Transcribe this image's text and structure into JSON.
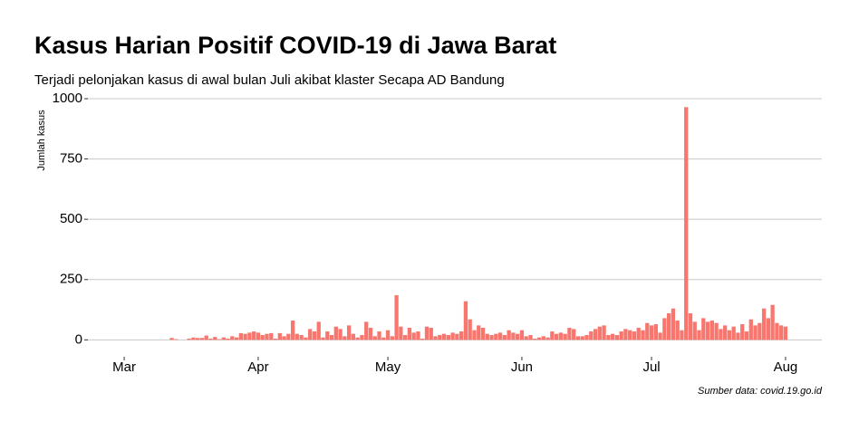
{
  "chart_data": {
    "type": "bar",
    "title": "Kasus Harian Positif COVID-19 di Jawa Barat",
    "subtitle": "Terjadi pelonjakan kasus di awal bulan Juli akibat klaster Secapa AD Bandung",
    "y_label": "Jumlah kasus",
    "caption": "Sumber data: covid.19.go.id",
    "color": "#F8766D",
    "grid": true,
    "x": [
      11,
      12,
      13,
      14,
      15,
      16,
      17,
      18,
      19,
      20,
      21,
      22,
      23,
      24,
      25,
      26,
      27,
      28,
      29,
      30,
      31,
      32,
      33,
      34,
      35,
      36,
      37,
      38,
      39,
      40,
      41,
      42,
      43,
      44,
      45,
      46,
      47,
      48,
      49,
      50,
      51,
      52,
      53,
      54,
      55,
      56,
      57,
      58,
      59,
      60,
      61,
      62,
      63,
      64,
      65,
      66,
      67,
      68,
      69,
      70,
      71,
      72,
      73,
      74,
      75,
      76,
      77,
      78,
      79,
      80,
      81,
      82,
      83,
      84,
      85,
      86,
      87,
      88,
      89,
      90,
      91,
      92,
      93,
      94,
      95,
      96,
      97,
      98,
      99,
      100,
      101,
      102,
      103,
      104,
      105,
      106,
      107,
      108,
      109,
      110,
      111,
      112,
      113,
      114,
      115,
      116,
      117,
      118,
      119,
      120,
      121,
      122,
      123,
      124,
      125,
      126,
      127,
      128,
      129,
      130,
      131,
      132,
      133,
      134,
      135,
      136,
      137,
      138,
      139,
      140,
      141,
      142,
      143,
      144,
      145,
      146,
      147,
      148,
      149,
      150,
      151,
      152,
      153
    ],
    "values": [
      8,
      3,
      0,
      0,
      5,
      10,
      8,
      8,
      18,
      5,
      12,
      3,
      10,
      5,
      15,
      10,
      28,
      25,
      30,
      35,
      30,
      20,
      25,
      28,
      5,
      28,
      15,
      25,
      80,
      25,
      20,
      10,
      45,
      35,
      75,
      10,
      35,
      20,
      55,
      45,
      15,
      60,
      25,
      10,
      20,
      75,
      50,
      15,
      35,
      10,
      40,
      15,
      185,
      55,
      20,
      50,
      30,
      35,
      5,
      55,
      50,
      15,
      20,
      25,
      20,
      30,
      25,
      35,
      160,
      85,
      40,
      60,
      50,
      25,
      20,
      25,
      30,
      20,
      40,
      30,
      25,
      40,
      15,
      20,
      5,
      10,
      15,
      10,
      35,
      25,
      30,
      25,
      50,
      45,
      15,
      15,
      20,
      35,
      45,
      55,
      60,
      20,
      25,
      20,
      35,
      45,
      40,
      35,
      50,
      40,
      70,
      60,
      65,
      30,
      90,
      110,
      130,
      80,
      40,
      965,
      110,
      75,
      40,
      90,
      75,
      80,
      70,
      45,
      60,
      40,
      55,
      30,
      65,
      35,
      85,
      60,
      70,
      130,
      90,
      145,
      70,
      60,
      55
    ],
    "xlim": [
      -8.4,
      161.4
    ],
    "xticks": [
      {
        "value": 0,
        "label": "Mar"
      },
      {
        "value": 31,
        "label": "Apr"
      },
      {
        "value": 61,
        "label": "May"
      },
      {
        "value": 92,
        "label": "Jun"
      },
      {
        "value": 122,
        "label": "Jul"
      },
      {
        "value": 153,
        "label": "Aug"
      }
    ],
    "ylim": [
      -70,
      1030
    ],
    "yticks": [
      0,
      250,
      500,
      750,
      1000
    ]
  }
}
